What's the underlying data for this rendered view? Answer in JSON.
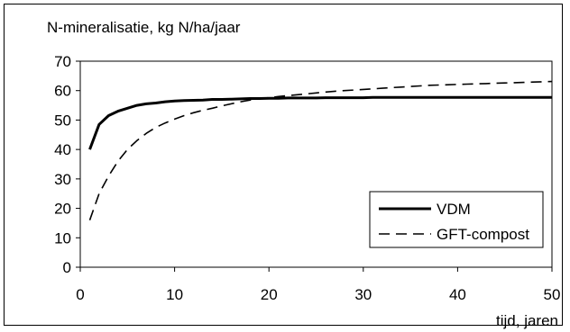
{
  "chart_data": {
    "type": "line",
    "title": "N-mineralisatie, kg N/ha/jaar",
    "xlabel": "tijd, jaren",
    "ylabel": "",
    "xlim": [
      0,
      50
    ],
    "ylim": [
      0,
      70
    ],
    "x_ticks": [
      "0",
      "10",
      "20",
      "30",
      "40",
      "50"
    ],
    "y_ticks": [
      "0",
      "10",
      "20",
      "30",
      "40",
      "50",
      "60",
      "70"
    ],
    "grid": false,
    "legend_position": "bottom-right",
    "series": [
      {
        "name": "VDM",
        "style": "solid",
        "x": [
          1,
          2,
          3,
          4,
          5,
          6,
          7,
          8,
          9,
          10,
          11,
          12,
          13,
          14,
          15,
          16,
          17,
          18,
          19,
          20,
          21,
          22,
          23,
          24,
          25,
          26,
          27,
          28,
          29,
          30,
          31,
          32,
          33,
          34,
          35,
          36,
          37,
          38,
          39,
          40,
          41,
          42,
          43,
          44,
          45,
          46,
          47,
          48,
          49,
          50
        ],
        "y": [
          40,
          48.5,
          51.5,
          53,
          54,
          55,
          55.5,
          55.8,
          56.2,
          56.5,
          56.6,
          56.7,
          56.8,
          57,
          57,
          57.1,
          57.2,
          57.3,
          57.3,
          57.4,
          57.4,
          57.5,
          57.5,
          57.5,
          57.5,
          57.6,
          57.6,
          57.6,
          57.6,
          57.6,
          57.7,
          57.7,
          57.7,
          57.7,
          57.7,
          57.7,
          57.7,
          57.7,
          57.7,
          57.7,
          57.7,
          57.7,
          57.7,
          57.7,
          57.7,
          57.7,
          57.7,
          57.7,
          57.7,
          57.7
        ]
      },
      {
        "name": "GFT-compost",
        "style": "dashed",
        "x": [
          1,
          2,
          3,
          4,
          5,
          6,
          7,
          8,
          9,
          10,
          11,
          12,
          13,
          14,
          15,
          16,
          17,
          18,
          19,
          20,
          21,
          22,
          23,
          24,
          25,
          26,
          27,
          28,
          29,
          30,
          31,
          32,
          33,
          34,
          35,
          36,
          37,
          38,
          39,
          40,
          41,
          42,
          43,
          44,
          45,
          46,
          47,
          48,
          49,
          50
        ],
        "y": [
          16,
          25,
          31,
          36,
          40,
          43,
          45.5,
          47.5,
          49,
          50.3,
          51.5,
          52.5,
          53.3,
          54,
          54.8,
          55.5,
          56.2,
          56.8,
          57.2,
          57.6,
          58,
          58.3,
          58.6,
          58.9,
          59.2,
          59.5,
          59.8,
          60,
          60.2,
          60.4,
          60.6,
          60.8,
          61,
          61.2,
          61.4,
          61.6,
          61.8,
          61.9,
          62,
          62.1,
          62.2,
          62.3,
          62.4,
          62.5,
          62.6,
          62.7,
          62.8,
          62.9,
          63,
          63.1
        ]
      }
    ]
  },
  "colors": {
    "line": "#000000",
    "background": "#ffffff"
  }
}
